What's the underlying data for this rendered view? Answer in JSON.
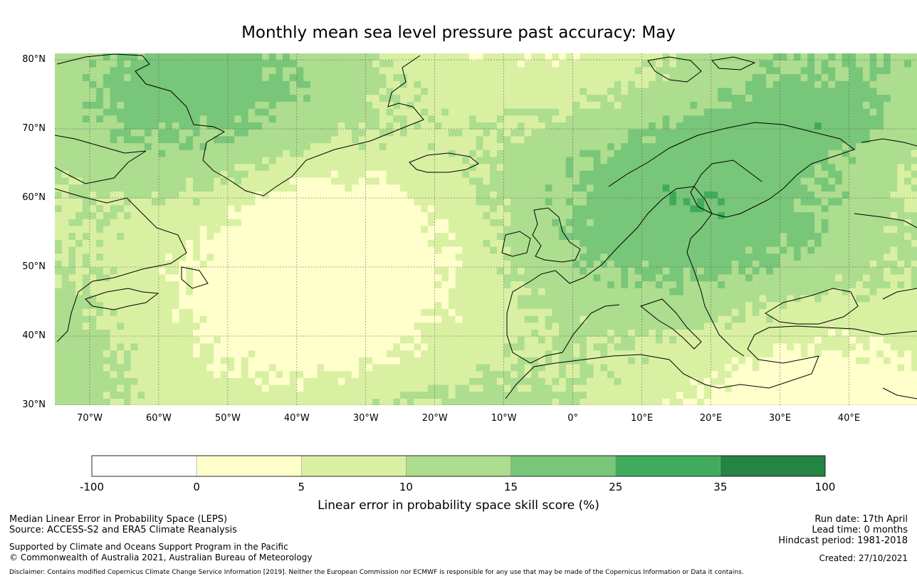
{
  "title": "Monthly mean sea level pressure past accuracy: May",
  "lat_labels": [
    "80°N",
    "70°N",
    "60°N",
    "50°N",
    "40°N",
    "30°N"
  ],
  "lon_labels": [
    "70°W",
    "60°W",
    "50°W",
    "40°W",
    "30°W",
    "20°W",
    "10°W",
    "0°",
    "10°E",
    "20°E",
    "30°E",
    "40°E"
  ],
  "colorbar": {
    "ticks": [
      "-100",
      "0",
      "5",
      "10",
      "15",
      "25",
      "35",
      "100"
    ],
    "colors": [
      "#ffffff",
      "#ffffcc",
      "#d9f0a3",
      "#addd8e",
      "#78c679",
      "#41ab5d",
      "#238443"
    ],
    "label": "Linear error in probability space skill score (%)"
  },
  "footer": {
    "line1": "Median Linear Error in Probability Space (LEPS)",
    "line2": "Source: ACCESS-S2 and ERA5 Climate Reanalysis",
    "line3": "Supported by Climate and Oceans Support Program in the Pacific",
    "line4": "© Commonwealth of Australia 2021, Australian Bureau of Meteorology",
    "run_date": "Run date: 17th April",
    "lead_time": "Lead time: 0 months",
    "hindcast": "Hindcast period: 1981-2018",
    "created": "Created: 27/10/2021",
    "disclaimer": "Disclaimer: Contains modified Copernicus Climate Change Service Information [2019]. Neither the European Commission nor ECMWF is responsible for any use that may be made of the Copernicus Information or Data it contains."
  }
}
